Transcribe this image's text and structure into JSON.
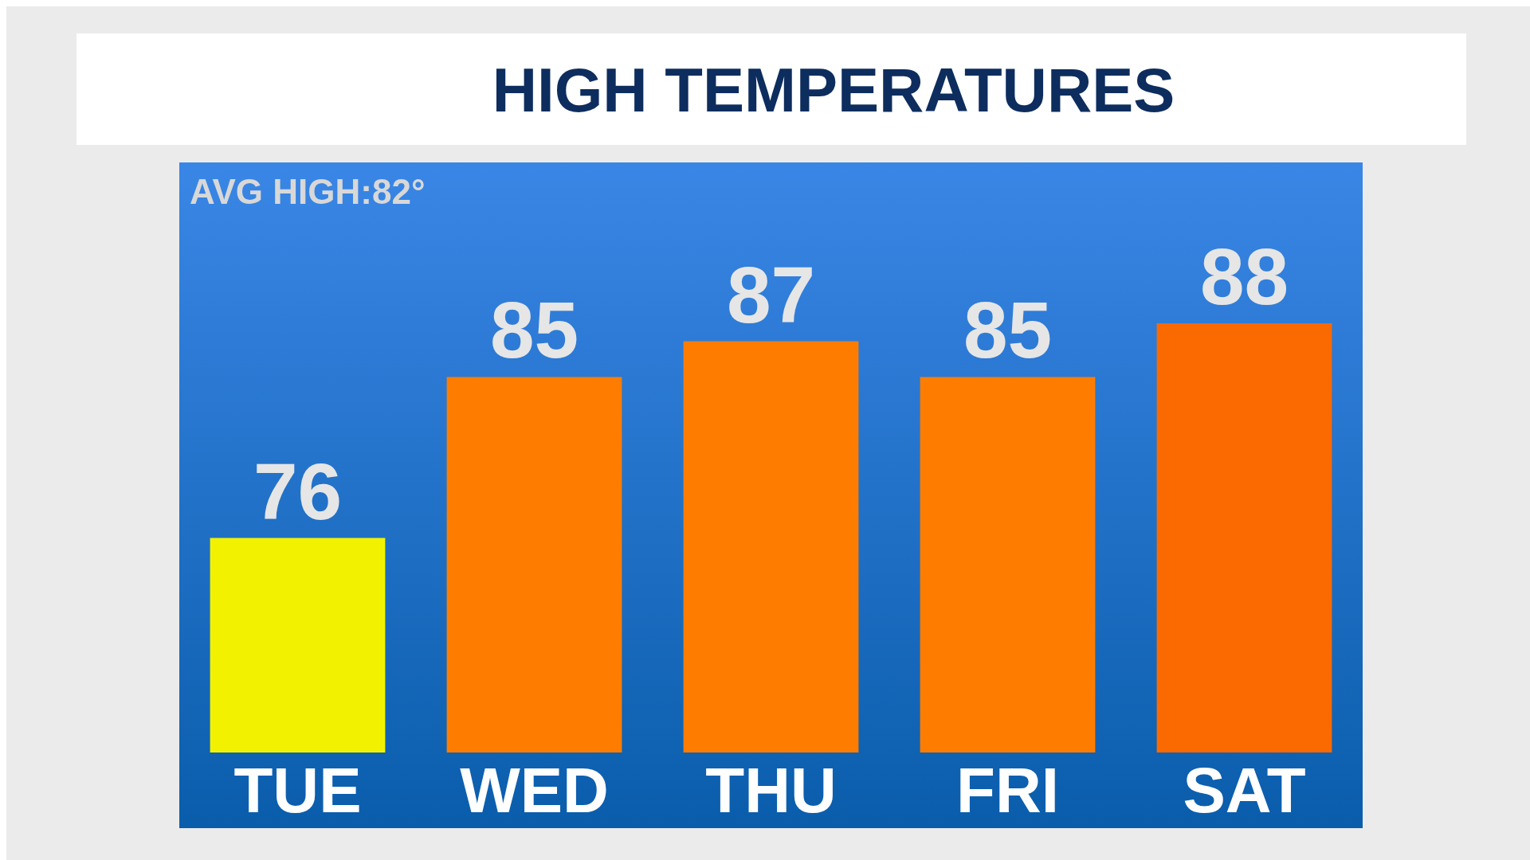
{
  "chart_data": {
    "type": "bar",
    "title": "HIGH TEMPERATURES",
    "categories": [
      "TUE",
      "WED",
      "THU",
      "FRI",
      "SAT"
    ],
    "values": [
      76,
      85,
      87,
      85,
      88
    ],
    "colors": [
      "#f2f200",
      "#fe7d00",
      "#fe7d00",
      "#fe7d00",
      "#fb6a00"
    ],
    "ylim": [
      64,
      97
    ],
    "data_labels": true,
    "annotations": [
      "AVG HIGH:82°"
    ]
  }
}
